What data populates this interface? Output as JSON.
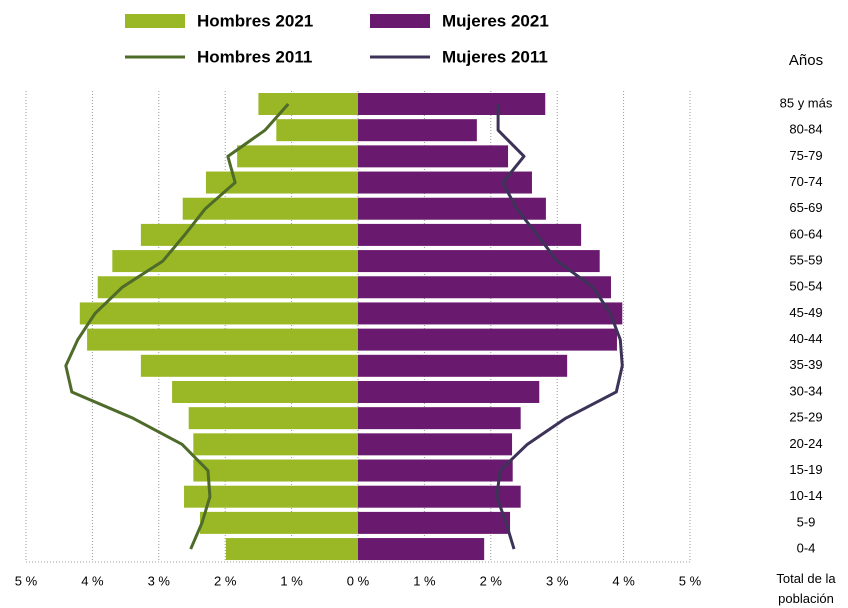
{
  "chart_data": {
    "type": "pyramid",
    "y_axis_label": "Años",
    "x_axis_label": "Total de la población",
    "categories": [
      "85 y más",
      "80-84",
      "75-79",
      "70-74",
      "65-69",
      "60-64",
      "55-59",
      "50-54",
      "45-49",
      "40-44",
      "35-39",
      "30-34",
      "25-29",
      "20-24",
      "15-19",
      "10-14",
      "5-9",
      "0-4"
    ],
    "series": [
      {
        "name": "Hombres 2021",
        "mark": "bar",
        "side": "left",
        "color": "#9ab825",
        "values": [
          1.5,
          1.23,
          1.82,
          2.29,
          2.64,
          3.27,
          3.7,
          3.92,
          4.19,
          4.08,
          3.27,
          2.8,
          2.55,
          2.48,
          2.48,
          2.62,
          2.38,
          1.99
        ]
      },
      {
        "name": "Mujeres 2021",
        "mark": "bar",
        "side": "right",
        "color": "#6a1a6e",
        "values": [
          2.82,
          1.79,
          2.26,
          2.62,
          2.83,
          3.36,
          3.64,
          3.81,
          3.98,
          3.9,
          3.15,
          2.73,
          2.45,
          2.32,
          2.33,
          2.45,
          2.29,
          1.9
        ]
      },
      {
        "name": "Hombres 2011",
        "mark": "line",
        "side": "left",
        "color": "#4e6b2a",
        "values": [
          1.05,
          1.4,
          1.96,
          1.85,
          2.3,
          2.61,
          2.94,
          3.55,
          3.96,
          4.22,
          4.4,
          4.31,
          3.39,
          2.65,
          2.26,
          2.23,
          2.35,
          2.52
        ]
      },
      {
        "name": "Mujeres 2011",
        "mark": "line",
        "side": "right",
        "color": "#3d3358",
        "values": [
          2.11,
          2.11,
          2.5,
          2.18,
          2.39,
          2.7,
          3.0,
          3.54,
          3.8,
          3.95,
          3.98,
          3.89,
          3.13,
          2.55,
          2.14,
          2.09,
          2.23,
          2.35
        ]
      }
    ],
    "xlim": [
      -5,
      5
    ],
    "xticks": [
      {
        "value": -5,
        "label": "5 %"
      },
      {
        "value": -4,
        "label": "4 %"
      },
      {
        "value": -3,
        "label": "3 %"
      },
      {
        "value": -2,
        "label": "2 %"
      },
      {
        "value": -1,
        "label": "1 %"
      },
      {
        "value": 0,
        "label": "0 %"
      },
      {
        "value": 1,
        "label": "1 %"
      },
      {
        "value": 2,
        "label": "2 %"
      },
      {
        "value": 3,
        "label": "3 %"
      },
      {
        "value": 4,
        "label": "4 %"
      },
      {
        "value": 5,
        "label": "5 %"
      }
    ],
    "grid": true
  }
}
